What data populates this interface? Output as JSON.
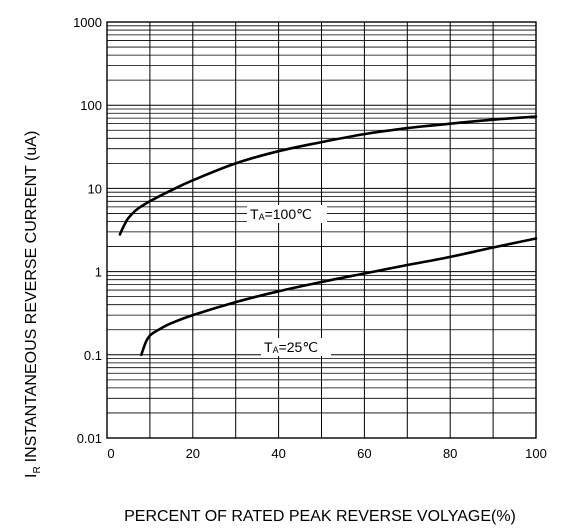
{
  "chart_data": {
    "type": "line",
    "xlabel": "PERCENT OF RATED PEAK REVERSE VOLYAGE(%)",
    "ylabel_prefix": "I",
    "ylabel_sub": "R",
    "ylabel_main": "INSTANTANEOUS REVERSE CURRENT (uA)",
    "xlim": [
      0,
      100
    ],
    "ylim": [
      0.01,
      1000
    ],
    "yscale": "log",
    "grid": true,
    "x_ticks": [
      "0",
      "20",
      "40",
      "60",
      "80",
      "100"
    ],
    "y_ticks": [
      "0.01",
      "0.1",
      "1",
      "10",
      "100",
      "1000"
    ],
    "series": [
      {
        "name_prefix": "T",
        "name_sub": "A",
        "name_value": "=100℃",
        "x": [
          3,
          4,
          5,
          7,
          10,
          15,
          20,
          30,
          40,
          50,
          60,
          70,
          80,
          90,
          100
        ],
        "y": [
          2.8,
          3.6,
          4.4,
          5.6,
          7.0,
          9.5,
          12.5,
          20,
          28,
          36,
          45,
          53,
          60,
          67,
          73
        ]
      },
      {
        "name_prefix": "T",
        "name_sub": "A",
        "name_value": "=25℃",
        "x": [
          8,
          9,
          10,
          12,
          15,
          20,
          30,
          40,
          50,
          60,
          70,
          80,
          90,
          100
        ],
        "y": [
          0.1,
          0.14,
          0.17,
          0.2,
          0.24,
          0.3,
          0.43,
          0.58,
          0.75,
          0.95,
          1.2,
          1.5,
          1.95,
          2.5
        ]
      }
    ]
  }
}
